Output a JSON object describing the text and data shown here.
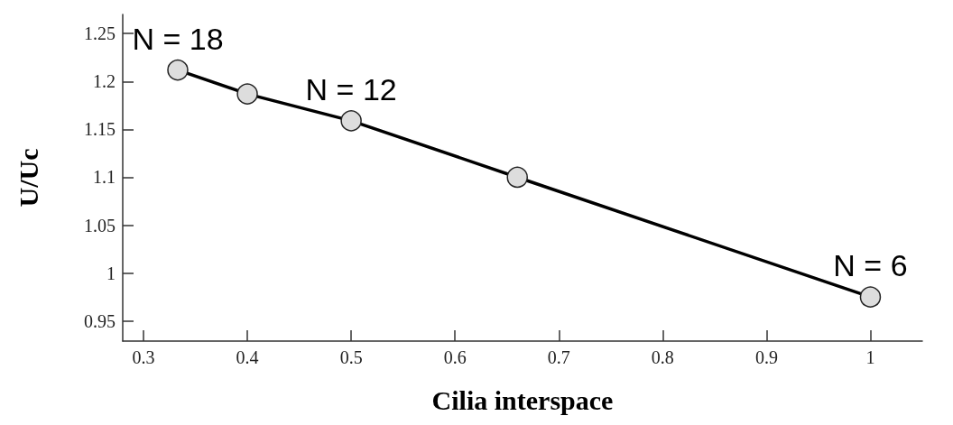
{
  "chart_data": {
    "type": "line",
    "xlabel": "Cilia interspace",
    "ylabel": "U/Uc",
    "x": [
      0.333,
      0.4,
      0.5,
      0.66,
      1
    ],
    "series": [
      {
        "color": "#000000",
        "values": [
          1.212,
          1.187,
          1.159,
          1.1,
          0.975
        ]
      }
    ],
    "xlim": [
      0.28,
      1.05
    ],
    "xticks": [
      0.3,
      0.4,
      0.5,
      0.6,
      0.7,
      0.8,
      0.9,
      1
    ],
    "ylim": [
      0.929,
      1.27
    ],
    "yticks": [
      0.95,
      1,
      1.05,
      1.1,
      1.15,
      1.2,
      1.25
    ],
    "grid": false,
    "marker": "circle",
    "line_style": "solid",
    "annotations": [
      {
        "text": "N = 18",
        "x": 0.333,
        "y": 1.212
      },
      {
        "text": "N = 12",
        "x": 0.5,
        "y": 1.159
      },
      {
        "text": "N = 6",
        "x": 1,
        "y": 0.975
      }
    ]
  }
}
